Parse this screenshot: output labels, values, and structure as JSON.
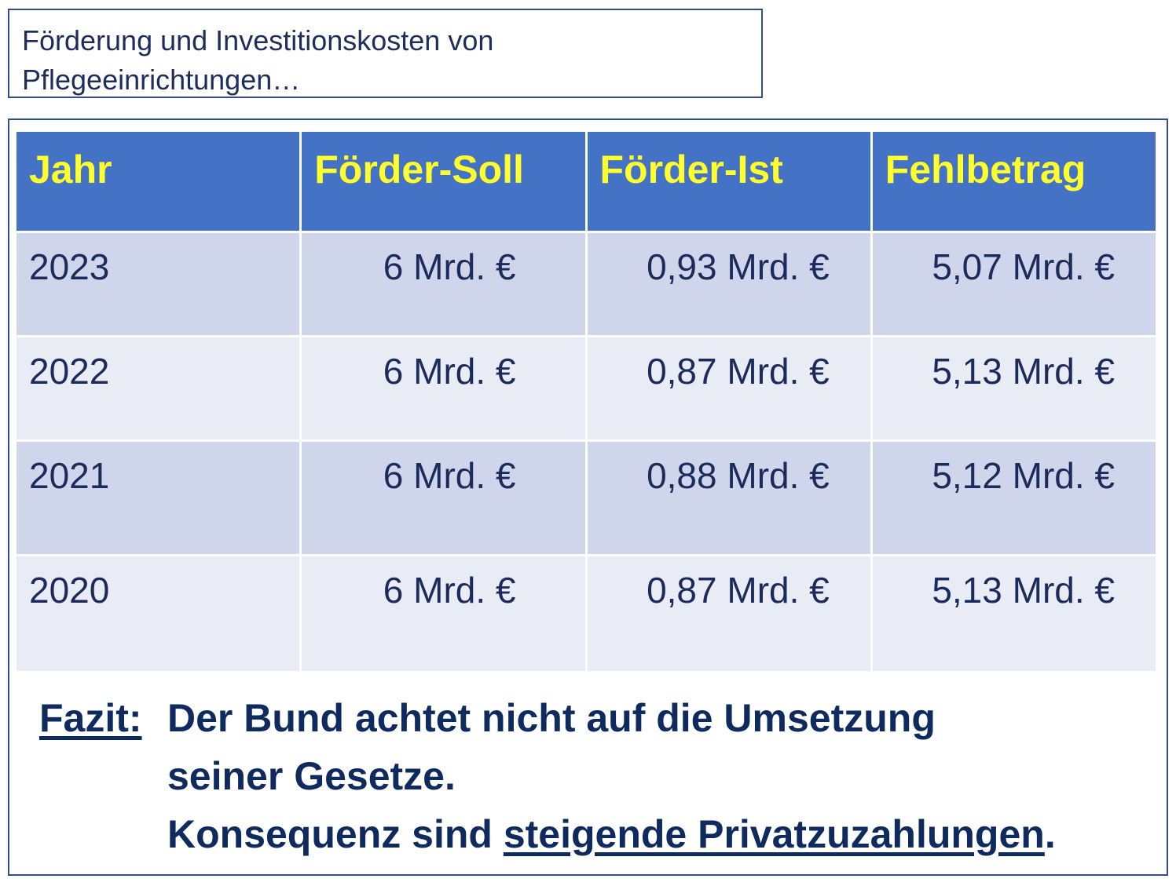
{
  "title": {
    "line1": "Förderung und Investitionskosten von",
    "line2": "Pflegeeinrichtungen…"
  },
  "table": {
    "headers": [
      "Jahr",
      "Förder-Soll",
      "Förder-Ist",
      "Fehlbetrag"
    ],
    "rows": [
      {
        "jahr": "2023",
        "soll": "6 Mrd. €",
        "ist": "0,93 Mrd. €",
        "fehl": "5,07 Mrd. €"
      },
      {
        "jahr": "2022",
        "soll": "6 Mrd. €",
        "ist": "0,87 Mrd. €",
        "fehl": "5,13 Mrd. €"
      },
      {
        "jahr": "2021",
        "soll": "6 Mrd. €",
        "ist": "0,88 Mrd. €",
        "fehl": "5,12 Mrd. €"
      },
      {
        "jahr": "2020",
        "soll": "6 Mrd. €",
        "ist": "0,87 Mrd. €",
        "fehl": "5,13 Mrd. €"
      }
    ]
  },
  "fazit": {
    "label": "Fazit:",
    "line1": "Der Bund achtet nicht auf die Umsetzung",
    "line2": "seiner Gesetze.",
    "line3_prefix": "Konsequenz sind ",
    "line3_underlined": "steigende Privatzuzahlungen",
    "line3_suffix": "."
  },
  "colors": {
    "header_bg": "#4472c4",
    "header_text": "#ffff2e",
    "row_dark": "#cfd5ea",
    "row_light": "#e9ebf5",
    "text": "#1a2b5c",
    "border": "#2f4f8f"
  }
}
